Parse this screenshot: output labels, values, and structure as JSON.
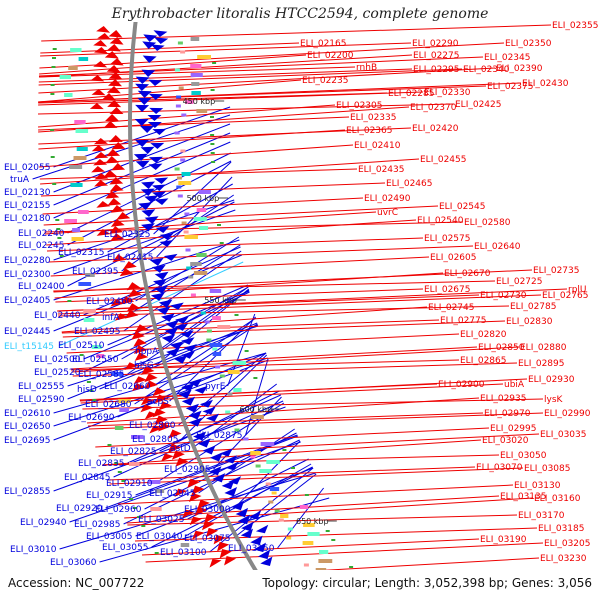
{
  "title": "Erythrobacter litoralis HTCC2594, complete genome",
  "footer": {
    "accession": "Accession: NC_007722",
    "summary": "Topology: circular; Length: 3,052,398 bp; Genes: 3,056"
  },
  "scale_ticks": [
    "400 kbp",
    "450 kbp",
    "500 kbp",
    "550 kbp",
    "600 kbp",
    "650 kbp"
  ],
  "colors": {
    "minus_strand": "#0000dd",
    "plus_strand": "#ee0000",
    "rna": "#33ccff",
    "backbone": "#888888"
  },
  "left_labels": [
    "ELI_02055",
    "truA",
    "ELI_02130",
    "ELI_02155",
    "ELI_02180",
    "ELI_02240",
    "ELI_02245",
    "ELI_02280",
    "ELI_02300",
    "ELI_02315",
    "ELI_02325",
    "ELI_02395",
    "ELI_02415",
    "ELI_02400",
    "ELI_02405",
    "ELI_02460",
    "ELI_02440",
    "infA",
    "ELI_02445",
    "ELI_02495",
    "ELI_t15145",
    "ELI_02510",
    "hppA",
    "ELI_02500",
    "ELI_02550",
    "hisG",
    "ELI_02520",
    "ELI_02585",
    "ELI_02555",
    "hisD",
    "ELI_02660",
    "pyrE",
    "ELI_02590",
    "ELI_02680",
    "acpS",
    "ELI_02610",
    "ELI_02690",
    "ELI_02650",
    "ELI_02800",
    "ELI_02875",
    "ELI_02695",
    "ELI_02805",
    "ELI_02825",
    "astD",
    "ELI_02835",
    "ELI_02905",
    "ELI_02845",
    "ELI_02910",
    "ELI_02855",
    "ELI_02915",
    "ELI_02945",
    "ELI_03000",
    "ELI_02920",
    "ELI_02960",
    "ELI_02940",
    "ELI_02985",
    "ELI_03025",
    "ELI_03075",
    "ELI_03005",
    "ELI_03040",
    "ELI_03010",
    "ELI_03055",
    "ELI_03100",
    "ELI_03150",
    "ELI_03060"
  ],
  "right_labels": [
    "ELI_02165",
    "ELI_02290",
    "ELI_02355",
    "ELI_02200",
    "ELI_02275",
    "ELI_02350",
    "rnhB",
    "ELI_02295",
    "ELI_02340",
    "ELI_02345",
    "ELI_02235",
    "ELI_02390",
    "ELI_02285",
    "ELI_02330",
    "ELI_02375",
    "ELI_02430",
    "ELI_02305",
    "ELI_02370",
    "ELI_02425",
    "ELI_02335",
    "ELI_02420",
    "ELI_02365",
    "ELI_02410",
    "ELI_02455",
    "ELI_02435",
    "ELI_02465",
    "ELI_02490",
    "ELI_02545",
    "uvrC",
    "ELI_02540",
    "ELI_02580",
    "ELI_02575",
    "ELI_02640",
    "ELI_02605",
    "ELI_02735",
    "ELI_02670",
    "ELI_02725",
    "ELI_02675",
    "ELI_02730",
    "ELI_02765",
    "rplU",
    "ELI_02745",
    "ELI_02785",
    "ELI_02775",
    "ELI_02830",
    "ELI_02820",
    "ELI_02850",
    "ELI_02880",
    "ELI_02865",
    "ELI_02895",
    "ELI_02900",
    "ubiA",
    "ELI_02930",
    "ELI_02935",
    "lysK",
    "ELI_02970",
    "ELI_02990",
    "ELI_02995",
    "ELI_03035",
    "ELI_03020",
    "ELI_03050",
    "ELI_03070",
    "ELI_03085",
    "ELI_03130",
    "ELI_03135",
    "ELI_03160",
    "ELI_03170",
    "ELI_03185",
    "ELI_03190",
    "ELI_03205",
    "ELI_03230"
  ]
}
